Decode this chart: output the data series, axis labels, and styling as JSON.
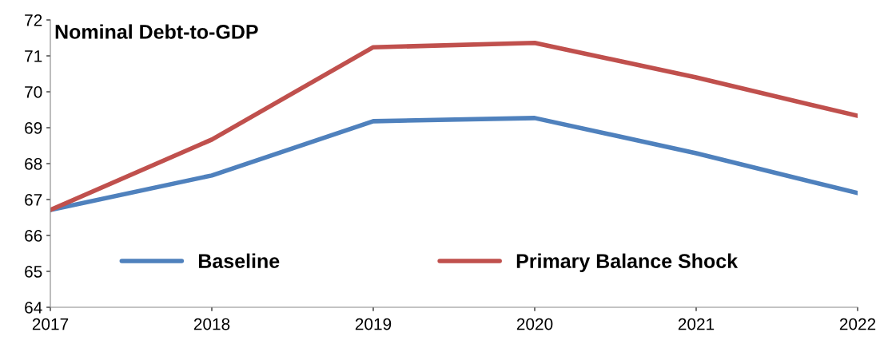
{
  "chart_data": {
    "type": "line",
    "title": "Nominal Debt-to-GDP",
    "x": [
      2017,
      2018,
      2019,
      2020,
      2021,
      2022
    ],
    "series": [
      {
        "name": "Baseline",
        "color": "#4f81bd",
        "values": [
          66.71,
          67.67,
          69.18,
          69.27,
          68.29,
          67.18
        ]
      },
      {
        "name": "Primary Balance Shock",
        "color": "#c0504d",
        "values": [
          66.71,
          68.67,
          71.24,
          71.36,
          70.4,
          69.33
        ]
      }
    ],
    "xlim": [
      2017,
      2022
    ],
    "xticks": [
      2017,
      2018,
      2019,
      2020,
      2021,
      2022
    ],
    "ylim": [
      64,
      72
    ],
    "yticks": [
      64,
      65,
      66,
      67,
      68,
      69,
      70,
      71,
      72
    ],
    "grid": false,
    "legend": "bottom",
    "marker": "none",
    "line_style": "solid"
  }
}
